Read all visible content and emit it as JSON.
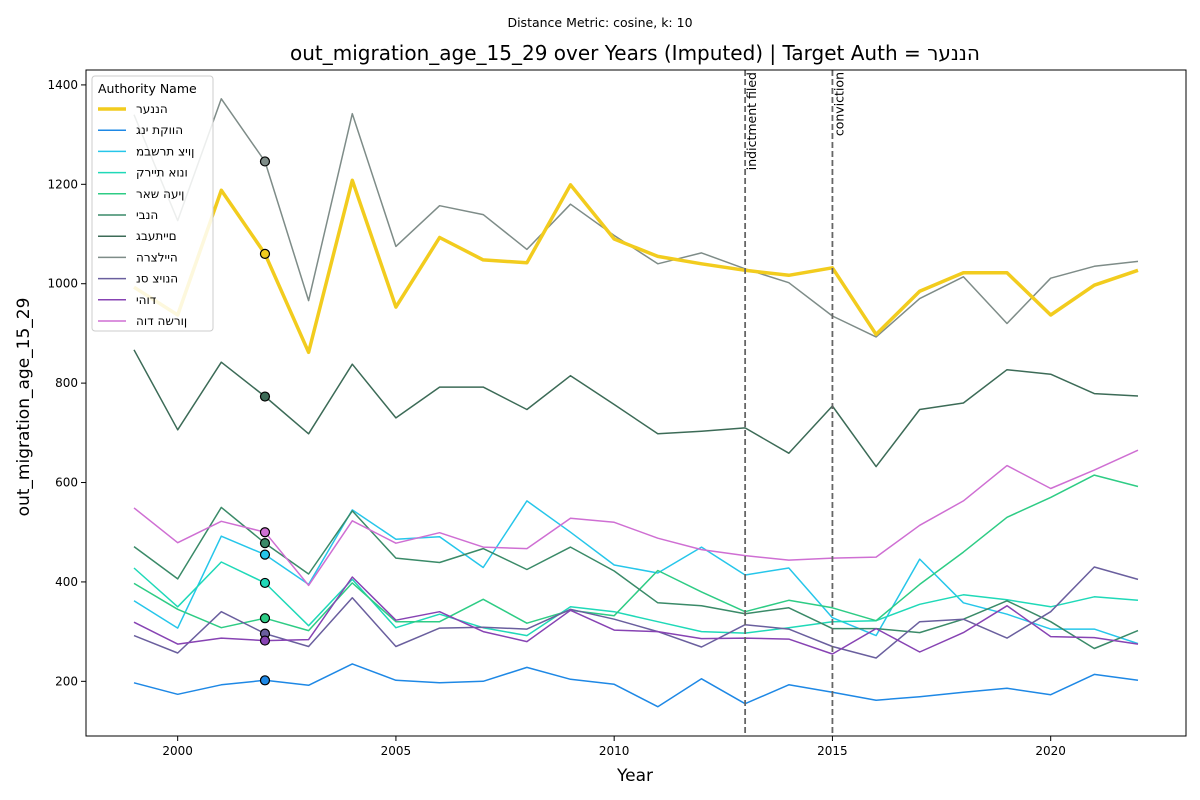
{
  "chart_data": {
    "type": "line",
    "suptitle": "Distance Metric: cosine, k: 10",
    "title": "out_migration_age_15_29 over Years (Imputed) | Target Auth = הננער",
    "xlabel": "Year",
    "ylabel": "out_migration_age_15_29",
    "xlim": [
      1997.9,
      2023.1
    ],
    "ylim": [
      90,
      1430
    ],
    "x_ticks": [
      2000,
      2005,
      2010,
      2015,
      2020
    ],
    "y_ticks": [
      200,
      400,
      600,
      800,
      1000,
      1200,
      1400
    ],
    "grid": false,
    "legend": {
      "title": "Authority Name",
      "placement": "top-left"
    },
    "x": [
      1999,
      2000,
      2001,
      2002,
      2003,
      2004,
      2005,
      2006,
      2007,
      2008,
      2009,
      2010,
      2011,
      2012,
      2013,
      2014,
      2015,
      2016,
      2017,
      2018,
      2019,
      2020,
      2021,
      2022
    ],
    "series": [
      {
        "name": "הננער",
        "color": "#f2cc1e",
        "width": 3.5,
        "marker_value": 1060,
        "values": [
          993,
          937,
          1188,
          1060,
          862,
          1208,
          953,
          1093,
          1048,
          1042,
          1199,
          1090,
          1055,
          1040,
          1027,
          1017,
          1032,
          898,
          985,
          1022,
          1022,
          937,
          997,
          1027
        ]
      },
      {
        "name": "הווקת ינג",
        "color": "#1e88e5",
        "width": 1.5,
        "marker_value": 202,
        "values": [
          197,
          174,
          193,
          202,
          192,
          235,
          202,
          197,
          200,
          228,
          204,
          194,
          149,
          205,
          155,
          193,
          178,
          162,
          169,
          178,
          186,
          173,
          214,
          202
        ]
      },
      {
        "name": "ןויצ תרשבמ",
        "color": "#26c6ea",
        "width": 1.5,
        "marker_value": 455,
        "values": [
          362,
          307,
          492,
          455,
          395,
          545,
          486,
          491,
          429,
          563,
          500,
          434,
          418,
          470,
          414,
          428,
          328,
          292,
          446,
          358,
          335,
          305,
          305,
          276
        ]
      },
      {
        "name": "ונוא תיירק",
        "color": "#1fd9b8",
        "width": 1.5,
        "marker_value": 398,
        "values": [
          428,
          350,
          440,
          398,
          312,
          405,
          308,
          335,
          308,
          292,
          350,
          340,
          320,
          300,
          297,
          308,
          320,
          322,
          355,
          374,
          364,
          350,
          370,
          363
        ]
      },
      {
        "name": "ןיעה שאר",
        "color": "#2ecc85",
        "width": 1.5,
        "marker_value": 327,
        "values": [
          397,
          345,
          308,
          327,
          302,
          398,
          320,
          320,
          365,
          317,
          343,
          332,
          423,
          380,
          340,
          363,
          348,
          322,
          395,
          460,
          530,
          570,
          615,
          592
        ]
      },
      {
        "name": "הנבי",
        "color": "#3a8a68",
        "width": 1.5,
        "marker_value": 478,
        "values": [
          471,
          406,
          550,
          478,
          416,
          543,
          448,
          439,
          467,
          425,
          470,
          422,
          358,
          352,
          336,
          348,
          306,
          306,
          298,
          325,
          362,
          320,
          266,
          302
        ]
      },
      {
        "name": "םייתעבג",
        "color": "#3c6b57",
        "width": 1.5,
        "marker_value": 773,
        "values": [
          867,
          706,
          842,
          773,
          698,
          838,
          730,
          792,
          792,
          747,
          815,
          757,
          698,
          703,
          710,
          659,
          754,
          632,
          747,
          760,
          827,
          818,
          779,
          774
        ]
      },
      {
        "name": "היילצרה",
        "color": "#7e8c88",
        "width": 1.5,
        "marker_value": 1246,
        "values": [
          1340,
          1127,
          1372,
          1246,
          966,
          1342,
          1075,
          1157,
          1139,
          1069,
          1160,
          1097,
          1040,
          1062,
          1030,
          1002,
          935,
          893,
          970,
          1014,
          920,
          1011,
          1035,
          1045
        ]
      },
      {
        "name": "הנויצ סנ",
        "color": "#6a5f9e",
        "width": 1.5,
        "marker_value": 296,
        "values": [
          292,
          257,
          340,
          296,
          270,
          368,
          270,
          307,
          309,
          305,
          345,
          325,
          300,
          269,
          314,
          305,
          270,
          247,
          320,
          325,
          287,
          340,
          430,
          405
        ]
      },
      {
        "name": "דוהי",
        "color": "#8743b3",
        "width": 1.5,
        "marker_value": 282,
        "values": [
          319,
          275,
          287,
          282,
          284,
          410,
          323,
          340,
          300,
          280,
          343,
          303,
          300,
          286,
          287,
          285,
          255,
          306,
          259,
          298,
          352,
          290,
          288,
          275
        ]
      },
      {
        "name": "ןורשה דוה",
        "color": "#cf6fd3",
        "width": 1.5,
        "marker_value": 500,
        "values": [
          549,
          479,
          522,
          500,
          393,
          523,
          478,
          499,
          470,
          467,
          528,
          520,
          488,
          465,
          453,
          444,
          448,
          450,
          514,
          563,
          634,
          588,
          625,
          665
        ]
      }
    ],
    "marker_x": 2002,
    "vlines": [
      {
        "x": 2013,
        "label": "indictment filed"
      },
      {
        "x": 2015,
        "label": "conviction"
      }
    ]
  }
}
